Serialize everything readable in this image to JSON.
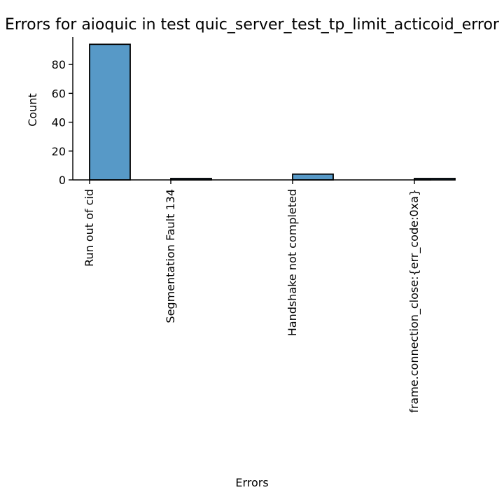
{
  "chart_data": {
    "type": "bar",
    "title": "Errors for aioquic in test quic_server_test_tp_limit_acticoid_error",
    "xlabel": "Errors",
    "ylabel": "Count",
    "categories": [
      "Run out of cid",
      "Segmentation Fault 134",
      "Handshake not completed",
      "frame.connection_close:{err_code:0xa}"
    ],
    "values": [
      94,
      1,
      4,
      1
    ],
    "y_ticks": [
      "0",
      "20",
      "40",
      "60",
      "80"
    ],
    "ylim": [
      0,
      99
    ],
    "bar_color": "#5799c7",
    "edge_color": "#000000",
    "grid": false,
    "legend": "none",
    "spines": "left-bottom"
  }
}
